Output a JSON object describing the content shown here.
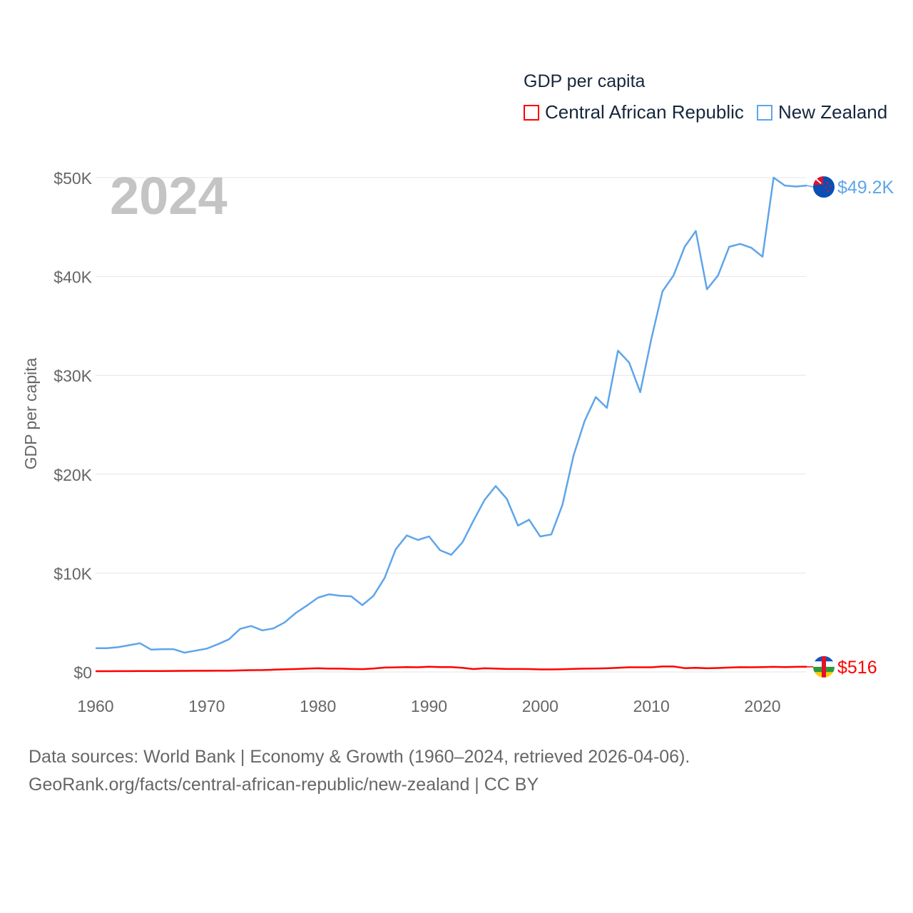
{
  "chart_data": {
    "type": "line",
    "title": "GDP per capita",
    "ylabel": "GDP per capita",
    "xlabel": "",
    "year_label": "2024",
    "xlim": [
      1960,
      2024
    ],
    "ylim": [
      0,
      50000
    ],
    "x_ticks": [
      1960,
      1970,
      1980,
      1990,
      2000,
      2010,
      2020
    ],
    "x_tick_labels": [
      "1960",
      "1970",
      "1980",
      "1990",
      "2000",
      "2010",
      "2020"
    ],
    "y_ticks": [
      0,
      10000,
      20000,
      30000,
      40000,
      50000
    ],
    "y_tick_labels": [
      "$0",
      "$10K",
      "$20K",
      "$30K",
      "$40K",
      "$50K"
    ],
    "grid": true,
    "legend_position": "top-right",
    "x": [
      1960,
      1961,
      1962,
      1963,
      1964,
      1965,
      1966,
      1967,
      1968,
      1969,
      1970,
      1971,
      1972,
      1973,
      1974,
      1975,
      1976,
      1977,
      1978,
      1979,
      1980,
      1981,
      1982,
      1983,
      1984,
      1985,
      1986,
      1987,
      1988,
      1989,
      1990,
      1991,
      1992,
      1993,
      1994,
      1995,
      1996,
      1997,
      1998,
      1999,
      2000,
      2001,
      2002,
      2003,
      2004,
      2005,
      2006,
      2007,
      2008,
      2009,
      2010,
      2011,
      2012,
      2013,
      2014,
      2015,
      2016,
      2017,
      2018,
      2019,
      2020,
      2021,
      2022,
      2023,
      2024
    ],
    "series": [
      {
        "name": "Central African Republic",
        "color": "#ff0000",
        "end_label": "$516",
        "values": [
          70,
          74,
          79,
          81,
          86,
          93,
          95,
          102,
          109,
          112,
          115,
          124,
          131,
          155,
          181,
          189,
          222,
          263,
          291,
          330,
          370,
          335,
          330,
          297,
          281,
          338,
          437,
          465,
          485,
          468,
          524,
          490,
          487,
          420,
          290,
          365,
          330,
          295,
          295,
          290,
          250,
          250,
          265,
          300,
          330,
          340,
          365,
          415,
          470,
          470,
          470,
          545,
          545,
          380,
          420,
          370,
          395,
          440,
          475,
          470,
          490,
          515,
          480,
          510,
          516
        ]
      },
      {
        "name": "New Zealand",
        "color": "#5ea5ea",
        "end_label": "$49.2K",
        "values": [
          2400,
          2400,
          2500,
          2700,
          2900,
          2250,
          2300,
          2300,
          1950,
          2150,
          2350,
          2800,
          3300,
          4350,
          4650,
          4200,
          4400,
          5000,
          5950,
          6700,
          7500,
          7850,
          7700,
          7650,
          6750,
          7700,
          9500,
          12400,
          13800,
          13350,
          13700,
          12300,
          11850,
          13100,
          15300,
          17400,
          18800,
          17500,
          14800,
          15400,
          13700,
          13900,
          16900,
          21900,
          25400,
          27800,
          26700,
          32500,
          31300,
          28300,
          33700,
          38500,
          40100,
          43000,
          44600,
          38700,
          40100,
          43000,
          43300,
          42900,
          42000,
          50000,
          49200,
          49100,
          49200
        ]
      }
    ]
  },
  "footer": {
    "line1": "Data sources: World Bank | Economy & Growth (1960–2024, retrieved 2026-04-06).",
    "line2": "GeoRank.org/facts/central-african-republic/new-zealand | CC BY"
  }
}
